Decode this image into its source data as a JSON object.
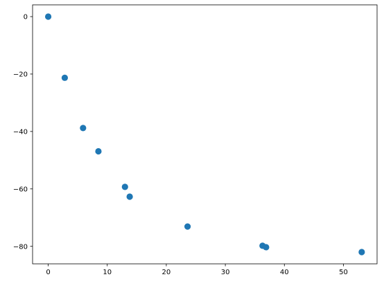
{
  "chart_data": {
    "type": "scatter",
    "title": "",
    "xlabel": "",
    "ylabel": "",
    "xlim": [
      -2.65,
      55.7
    ],
    "ylim": [
      -86.1,
      4.1
    ],
    "xticks": [
      0,
      10,
      20,
      30,
      40,
      50
    ],
    "yticks": [
      0,
      -20,
      -40,
      -60,
      -80
    ],
    "xtick_labels": [
      "0",
      "10",
      "20",
      "30",
      "40",
      "50"
    ],
    "ytick_labels": [
      "0",
      "−20",
      "−40",
      "−60",
      "−80"
    ],
    "grid": false,
    "series": [
      {
        "color": "#1f77b4",
        "points": [
          {
            "x": 0.0,
            "y": 0.0
          },
          {
            "x": 2.8,
            "y": -21.3
          },
          {
            "x": 5.9,
            "y": -38.8
          },
          {
            "x": 8.5,
            "y": -46.9
          },
          {
            "x": 13.0,
            "y": -59.3
          },
          {
            "x": 13.8,
            "y": -62.7
          },
          {
            "x": 23.6,
            "y": -73.1
          },
          {
            "x": 36.3,
            "y": -79.8
          },
          {
            "x": 36.9,
            "y": -80.3
          },
          {
            "x": 53.1,
            "y": -82.0
          }
        ]
      }
    ]
  }
}
